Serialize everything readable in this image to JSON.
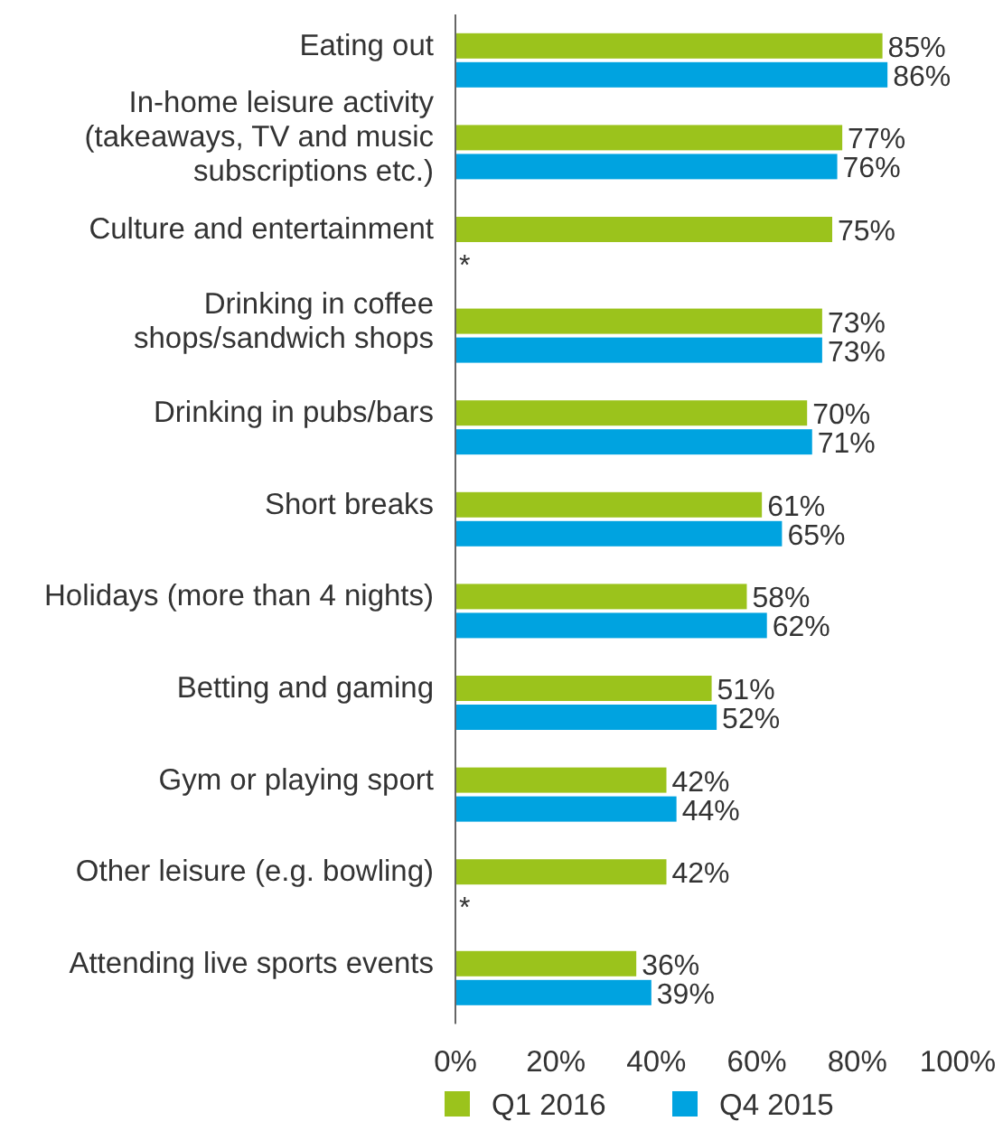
{
  "chart_data": {
    "type": "bar",
    "orientation": "horizontal",
    "categories": [
      "Eating out",
      "In-home leisure activity\n(takeaways, TV and music\nsubscriptions etc.)",
      "Culture and entertainment",
      "Drinking in coffee\nshops/sandwich shops",
      "Drinking in pubs/bars",
      "Short breaks",
      "Holidays (more than 4 nights)",
      "Betting and gaming",
      "Gym or playing sport",
      "Other leisure (e.g. bowling)",
      "Attending live sports events"
    ],
    "series": [
      {
        "name": "Q1 2016",
        "color": "#9bc31c",
        "values": [
          85,
          77,
          75,
          73,
          70,
          61,
          58,
          51,
          42,
          42,
          36
        ],
        "value_labels": [
          "85%",
          "77%",
          "75%",
          "73%",
          "70%",
          "61%",
          "58%",
          "51%",
          "42%",
          "42%",
          "36%"
        ]
      },
      {
        "name": "Q4 2015",
        "color": "#00a3e0",
        "values": [
          86,
          76,
          null,
          73,
          71,
          65,
          62,
          52,
          44,
          null,
          39
        ],
        "value_labels": [
          "86%",
          "76%",
          "*",
          "73%",
          "71%",
          "65%",
          "62%",
          "52%",
          "44%",
          "*",
          "39%"
        ]
      }
    ],
    "xlim": [
      0,
      100
    ],
    "xticks": [
      {
        "value": 0,
        "label": "0%"
      },
      {
        "value": 20,
        "label": "20%"
      },
      {
        "value": 40,
        "label": "40%"
      },
      {
        "value": 60,
        "label": "60%"
      },
      {
        "value": 80,
        "label": "80%"
      },
      {
        "value": 100,
        "label": "100%"
      }
    ],
    "grid": false,
    "legend": "bottom"
  }
}
